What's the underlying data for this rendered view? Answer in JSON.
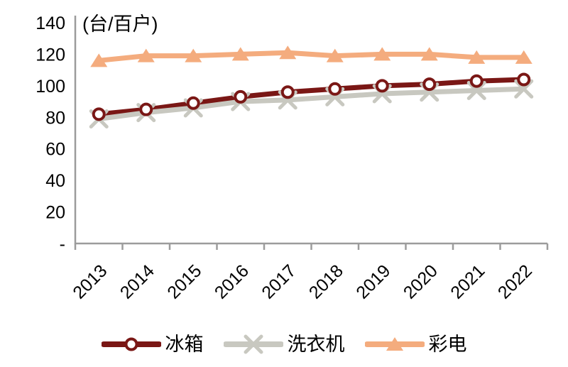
{
  "chart_data": {
    "type": "line",
    "title": "",
    "unit_label": "(台/百户)",
    "categories": [
      "2013",
      "2014",
      "2015",
      "2016",
      "2017",
      "2018",
      "2019",
      "2020",
      "2021",
      "2022"
    ],
    "series": [
      {
        "id": "fridge",
        "name": "冰箱",
        "color": "#7A1715",
        "marker": "circle",
        "marker_fill": "#FFFFFF",
        "values": [
          82,
          85,
          89,
          93,
          96,
          98,
          100,
          101,
          103,
          104
        ]
      },
      {
        "id": "washing-machine",
        "name": "洗衣机",
        "color": "#C8C8C0",
        "marker": "x",
        "marker_fill": "#C8C8C0",
        "values": [
          79,
          83,
          86,
          90,
          91,
          93,
          95,
          96,
          97,
          98
        ]
      },
      {
        "id": "color-tv",
        "name": "彩电",
        "color": "#F4AC7E",
        "marker": "triangle",
        "marker_fill": "#F4AC7E",
        "values": [
          116,
          119,
          119,
          120,
          121,
          119,
          120,
          120,
          118,
          118
        ]
      }
    ],
    "y_axis": {
      "min": 0,
      "max": 140,
      "step": 20,
      "tick_labels": [
        "-",
        "20",
        "40",
        "60",
        "80",
        "100",
        "120",
        "140"
      ]
    },
    "x_axis": {
      "label_rotation": -45
    },
    "grid": false,
    "legend_position": "bottom",
    "colors": {
      "axis": "#9C9C9C",
      "text": "#000000",
      "background": "#FFFFFF"
    }
  }
}
